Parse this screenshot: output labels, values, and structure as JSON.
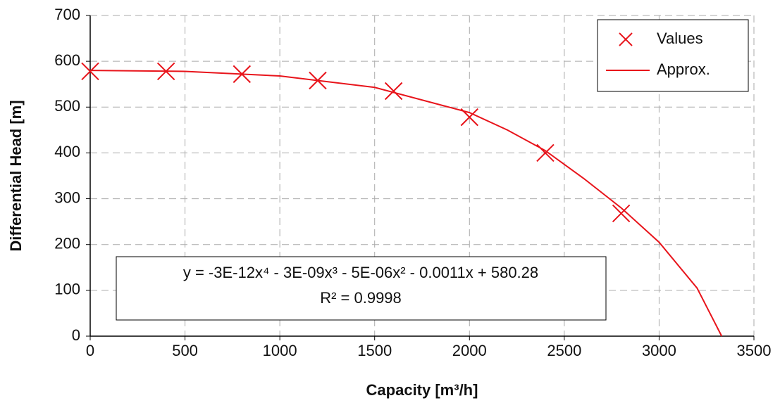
{
  "chart_data": {
    "type": "scatter",
    "xlabel": "Capacity [m³/h]",
    "ylabel": "Differential Head [m]",
    "xlim": [
      0,
      3500
    ],
    "xticks": [
      0,
      500,
      1000,
      1500,
      2000,
      2500,
      3000,
      3500
    ],
    "ylim": [
      0,
      700
    ],
    "yticks": [
      0,
      100,
      200,
      300,
      400,
      500,
      600,
      700
    ],
    "grid": true,
    "legend": "upper right",
    "series": [
      {
        "name": "Values",
        "kind": "scatter",
        "color": "#e8141b",
        "x": [
          0,
          400,
          800,
          1200,
          1600,
          2000,
          2400,
          2800
        ],
        "values": [
          578,
          578,
          572,
          558,
          535,
          478,
          400,
          268
        ]
      },
      {
        "name": "Approx.",
        "kind": "line",
        "color": "#e8141b",
        "x": [
          0,
          500,
          1000,
          1500,
          2000,
          2200,
          2400,
          2600,
          2800,
          3000,
          3200,
          3330
        ],
        "values": [
          580,
          578,
          568,
          543,
          488,
          450,
          405,
          345,
          280,
          205,
          105,
          0
        ]
      }
    ],
    "annotation": [
      "y = -3E-12x⁴ - 3E-09x³ - 5E-06x² - 0.0011x + 580.28",
      "R² = 0.9998"
    ]
  }
}
